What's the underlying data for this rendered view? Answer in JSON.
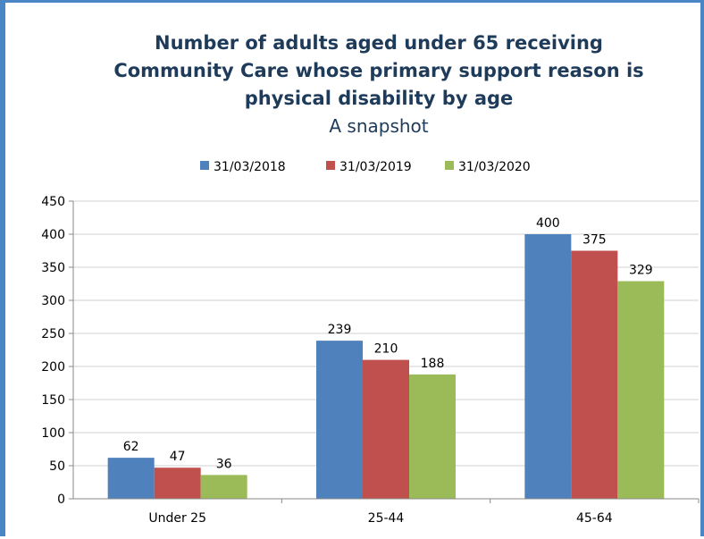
{
  "chart_data": {
    "type": "bar",
    "title_lines": [
      "Number of adults aged under 65 receiving",
      "Community Care whose primary support reason is",
      "physical disability by age"
    ],
    "subtitle": "A snapshot",
    "categories": [
      "Under 25",
      "25-44",
      "45-64"
    ],
    "series": [
      {
        "name": "31/03/2018",
        "color": "#4f81bd",
        "values": [
          62,
          239,
          400
        ]
      },
      {
        "name": "31/03/2019",
        "color": "#c0504d",
        "values": [
          47,
          210,
          375
        ]
      },
      {
        "name": "31/03/2020",
        "color": "#9bbb59",
        "values": [
          36,
          188,
          329
        ]
      }
    ],
    "ylim": [
      0,
      450
    ],
    "yticks": [
      0,
      50,
      100,
      150,
      200,
      250,
      300,
      350,
      400,
      450
    ],
    "grid": true,
    "legend": "top-center",
    "data_labels": true
  }
}
